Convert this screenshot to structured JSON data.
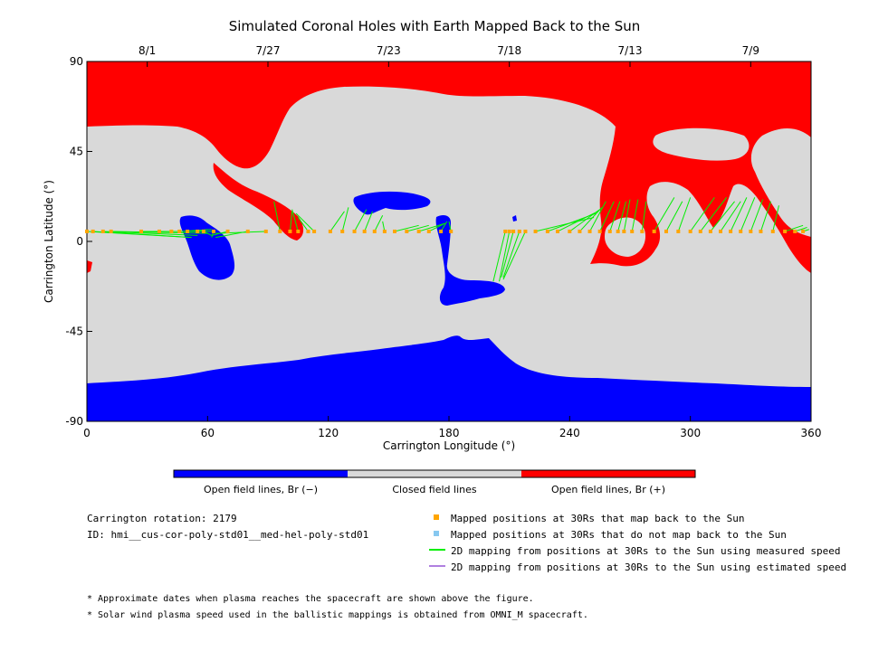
{
  "chart_data": {
    "type": "scatter",
    "title": "Simulated Coronal Holes with Earth Mapped Back to the Sun",
    "xlabel": "Carrington Longitude (°)",
    "ylabel": "Carrington Latitude (°)",
    "xlim": [
      0,
      360
    ],
    "ylim": [
      -90,
      90
    ],
    "x_ticks": [
      0,
      60,
      120,
      180,
      240,
      300,
      360
    ],
    "y_ticks": [
      -90,
      -45,
      0,
      45,
      90
    ],
    "top_axis": {
      "labels": [
        "8/1",
        "7/27",
        "7/23",
        "7/18",
        "7/13",
        "7/9"
      ],
      "longitudes": [
        30,
        90,
        150,
        210,
        270,
        330
      ]
    },
    "colors": {
      "open_negative": "#0000ff",
      "closed": "#d9d9d9",
      "open_positive": "#ff0000",
      "mapped_back": "#ffa500",
      "not_mapped": "#87c8f0",
      "measured_speed": "#00ee00",
      "estimated_speed": "#b080e0"
    },
    "colorbar_labels": [
      "Open field lines, Br (−)",
      "Closed field lines",
      "Open field lines, Br (+)"
    ],
    "mappings_measured_speed": [
      {
        "from": [
          0,
          5
        ],
        "to": [
          52,
          2
        ]
      },
      {
        "from": [
          3,
          5
        ],
        "to": [
          52,
          2
        ]
      },
      {
        "from": [
          8,
          5
        ],
        "to": [
          55,
          3
        ]
      },
      {
        "from": [
          12,
          5
        ],
        "to": [
          60,
          4
        ]
      },
      {
        "from": [
          27,
          5
        ],
        "to": [
          60,
          5
        ]
      },
      {
        "from": [
          36,
          5
        ],
        "to": [
          63,
          5
        ]
      },
      {
        "from": [
          42,
          5
        ],
        "to": [
          62,
          5
        ]
      },
      {
        "from": [
          46,
          5
        ],
        "to": [
          62,
          6
        ]
      },
      {
        "from": [
          50,
          5
        ],
        "to": [
          61,
          5
        ]
      },
      {
        "from": [
          55,
          5
        ],
        "to": [
          60,
          6
        ]
      },
      {
        "from": [
          58,
          5
        ],
        "to": [
          62,
          3
        ]
      },
      {
        "from": [
          63,
          5
        ],
        "to": [
          62,
          2
        ]
      },
      {
        "from": [
          70,
          5
        ],
        "to": [
          62,
          3
        ]
      },
      {
        "from": [
          80,
          5
        ],
        "to": [
          64,
          2
        ]
      },
      {
        "from": [
          89,
          5
        ],
        "to": [
          64,
          4
        ]
      },
      {
        "from": [
          96,
          5
        ],
        "to": [
          93,
          20
        ]
      },
      {
        "from": [
          101,
          5
        ],
        "to": [
          102,
          15
        ]
      },
      {
        "from": [
          105,
          5
        ],
        "to": [
          102,
          16
        ]
      },
      {
        "from": [
          110,
          5
        ],
        "to": [
          105,
          12
        ]
      },
      {
        "from": [
          113,
          5
        ],
        "to": [
          104,
          14
        ]
      },
      {
        "from": [
          121,
          5
        ],
        "to": [
          128,
          15
        ]
      },
      {
        "from": [
          127,
          5
        ],
        "to": [
          130,
          17
        ]
      },
      {
        "from": [
          133,
          5
        ],
        "to": [
          139,
          16
        ]
      },
      {
        "from": [
          138,
          5
        ],
        "to": [
          142,
          15
        ]
      },
      {
        "from": [
          143,
          5
        ],
        "to": [
          147,
          13
        ]
      },
      {
        "from": [
          148,
          5
        ],
        "to": [
          147,
          10
        ]
      },
      {
        "from": [
          153,
          5
        ],
        "to": [
          165,
          8
        ]
      },
      {
        "from": [
          159,
          5
        ],
        "to": [
          170,
          8
        ]
      },
      {
        "from": [
          165,
          5
        ],
        "to": [
          178,
          9
        ]
      },
      {
        "from": [
          170,
          5
        ],
        "to": [
          178,
          9
        ]
      },
      {
        "from": [
          176,
          5
        ],
        "to": [
          179,
          10
        ]
      },
      {
        "from": [
          181,
          5
        ],
        "to": [
          180,
          10
        ]
      },
      {
        "from": [
          208,
          5
        ],
        "to": [
          202,
          -20
        ]
      },
      {
        "from": [
          210,
          5
        ],
        "to": [
          205,
          -20
        ]
      },
      {
        "from": [
          212,
          5
        ],
        "to": [
          206,
          -18
        ]
      },
      {
        "from": [
          215,
          5
        ],
        "to": [
          207,
          -18
        ]
      },
      {
        "from": [
          218,
          5
        ],
        "to": [
          207,
          -19
        ]
      },
      {
        "from": [
          223,
          5
        ],
        "to": [
          252,
          12
        ]
      },
      {
        "from": [
          229,
          5
        ],
        "to": [
          253,
          14
        ]
      },
      {
        "from": [
          234,
          5
        ],
        "to": [
          254,
          15
        ]
      },
      {
        "from": [
          240,
          5
        ],
        "to": [
          255,
          16
        ]
      },
      {
        "from": [
          245,
          5
        ],
        "to": [
          256,
          17
        ]
      },
      {
        "from": [
          250,
          5
        ],
        "to": [
          258,
          20
        ]
      },
      {
        "from": [
          255,
          5
        ],
        "to": [
          262,
          20
        ]
      },
      {
        "from": [
          260,
          5
        ],
        "to": [
          265,
          20
        ]
      },
      {
        "from": [
          264,
          5
        ],
        "to": [
          268,
          20
        ]
      },
      {
        "from": [
          267,
          5
        ],
        "to": [
          270,
          21
        ]
      },
      {
        "from": [
          271,
          5
        ],
        "to": [
          274,
          21
        ]
      },
      {
        "from": [
          276,
          5
        ],
        "to": [
          278,
          20
        ]
      },
      {
        "from": [
          282,
          5
        ],
        "to": [
          292,
          22
        ]
      },
      {
        "from": [
          288,
          5
        ],
        "to": [
          296,
          20
        ]
      },
      {
        "from": [
          294,
          5
        ],
        "to": [
          300,
          22
        ]
      },
      {
        "from": [
          300,
          5
        ],
        "to": [
          312,
          22
        ]
      },
      {
        "from": [
          305,
          5
        ],
        "to": [
          318,
          22
        ]
      },
      {
        "from": [
          310,
          5
        ],
        "to": [
          322,
          20
        ]
      },
      {
        "from": [
          315,
          5
        ],
        "to": [
          325,
          20
        ]
      },
      {
        "from": [
          320,
          5
        ],
        "to": [
          328,
          22
        ]
      },
      {
        "from": [
          325,
          5
        ],
        "to": [
          332,
          22
        ]
      },
      {
        "from": [
          330,
          5
        ],
        "to": [
          336,
          21
        ]
      },
      {
        "from": [
          335,
          5
        ],
        "to": [
          340,
          20
        ]
      },
      {
        "from": [
          341,
          5
        ],
        "to": [
          344,
          18
        ]
      },
      {
        "from": [
          347,
          5
        ],
        "to": [
          356,
          8
        ]
      },
      {
        "from": [
          352,
          5
        ],
        "to": [
          358,
          7
        ]
      },
      {
        "from": [
          356,
          5
        ],
        "to": [
          359,
          6
        ]
      }
    ],
    "mapped_positions_30Rs": [
      0,
      3,
      8,
      12,
      27,
      36,
      42,
      46,
      50,
      55,
      58,
      63,
      70,
      80,
      89,
      96,
      101,
      105,
      110,
      113,
      121,
      127,
      133,
      138,
      143,
      148,
      153,
      159,
      165,
      170,
      176,
      181,
      208,
      210,
      212,
      215,
      218,
      223,
      229,
      234,
      240,
      245,
      250,
      255,
      260,
      264,
      267,
      271,
      276,
      282,
      288,
      294,
      300,
      305,
      310,
      315,
      320,
      325,
      330,
      335,
      341,
      347,
      352,
      356
    ],
    "mapped_latitude": 5
  },
  "colorbar": {
    "label_negative": "Open field lines, Br (−)",
    "label_closed": "Closed field lines",
    "label_positive": "Open field lines, Br (+)"
  },
  "info": {
    "rotation": "Carrington rotation: 2179",
    "id": "ID: hmi__cus-cor-poly-std01__med-hel-poly-std01"
  },
  "legend": {
    "items": [
      "Mapped positions at 30Rs that map back to the Sun",
      "Mapped positions at 30Rs that do not map back to the Sun",
      "2D mapping from positions at 30Rs to the Sun using measured speed",
      "2D mapping from positions at 30Rs to the Sun using estimated speed"
    ]
  },
  "footnotes": {
    "note1": "* Approximate dates when plasma reaches the spacecraft are shown above the figure.",
    "note2": "* Solar wind plasma speed used in the ballistic mappings is obtained from OMNI_M spacecraft."
  }
}
